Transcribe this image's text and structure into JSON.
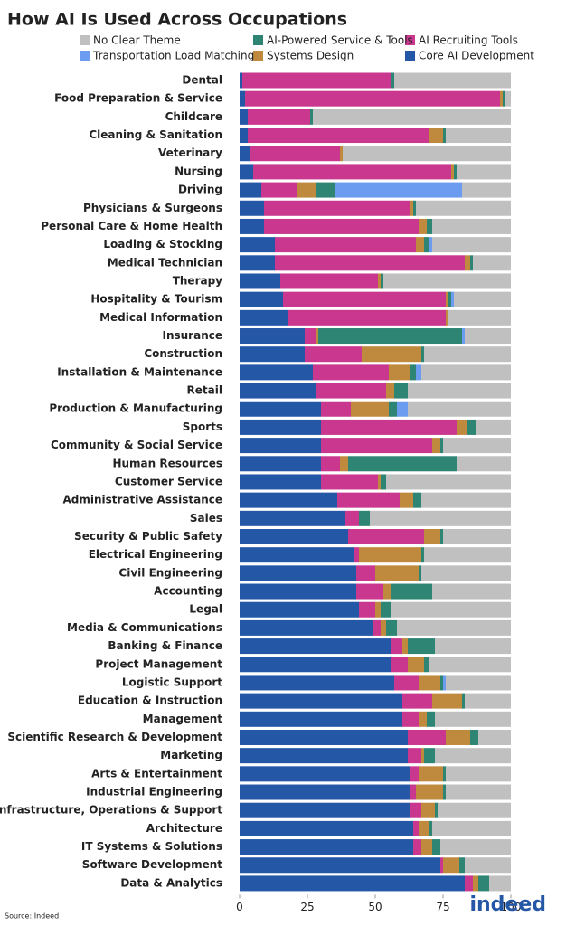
{
  "chart_data": {
    "type": "stacked-bar-horizontal",
    "title": "How AI Is Used Across Occupations",
    "categories": [
      "Dental",
      "Food Preparation & Service",
      "Childcare",
      "Cleaning & Sanitation",
      "Veterinary",
      "Nursing",
      "Driving",
      "Physicians & Surgeons",
      "Personal Care & Home Health",
      "Loading & Stocking",
      "Medical Technician",
      "Therapy",
      "Hospitality & Tourism",
      "Medical Information",
      "Insurance",
      "Construction",
      "Installation & Maintenance",
      "Retail",
      "Production & Manufacturing",
      "Sports",
      "Community & Social Service",
      "Human Resources",
      "Customer Service",
      "Administrative Assistance",
      "Sales",
      "Security & Public Safety",
      "Electrical Engineering",
      "Civil Engineering",
      "Accounting",
      "Legal",
      "Media & Communications",
      "Banking & Finance",
      "Project Management",
      "Logistic Support",
      "Education & Instruction",
      "Management",
      "Scientific Research & Development",
      "Marketing",
      "Arts & Entertainment",
      "Industrial Engineering",
      "IT Infrastructure, Operations & Support",
      "Architecture",
      "IT Systems & Solutions",
      "Software Development",
      "Data & Analytics"
    ],
    "series": [
      {
        "name": "Core AI Development",
        "color": "#2557a7",
        "values": [
          1,
          2,
          3,
          3,
          4,
          5,
          8,
          9,
          9,
          13,
          13,
          15,
          16,
          18,
          24,
          24,
          27,
          28,
          30,
          30,
          30,
          30,
          30,
          36,
          39,
          40,
          42,
          43,
          43,
          44,
          49,
          56,
          56,
          57,
          60,
          60,
          62,
          62,
          63,
          63,
          63,
          64,
          64,
          74,
          83
        ]
      },
      {
        "name": "AI Recruiting Tools",
        "color": "#c9378f",
        "values": [
          55,
          94,
          23,
          67,
          33,
          73,
          13,
          54,
          57,
          52,
          70,
          36,
          60,
          58,
          4,
          21,
          28,
          26,
          11,
          50,
          41,
          7,
          21,
          23,
          5,
          28,
          2,
          7,
          10,
          6,
          3,
          4,
          6,
          9,
          11,
          6,
          14,
          5,
          3,
          2,
          4,
          2,
          3,
          1,
          3
        ]
      },
      {
        "name": "Systems Design",
        "color": "#c08a3e",
        "values": [
          0,
          1,
          0,
          5,
          1,
          1,
          7,
          1,
          3,
          3,
          2,
          1,
          1,
          1,
          1,
          22,
          8,
          3,
          14,
          4,
          3,
          3,
          1,
          5,
          0,
          6,
          23,
          16,
          3,
          2,
          2,
          2,
          6,
          8,
          11,
          3,
          9,
          1,
          9,
          10,
          5,
          4,
          4,
          6,
          2
        ]
      },
      {
        "name": "AI-Powered Service & Tools",
        "color": "#2e8574",
        "values": [
          1,
          1,
          1,
          1,
          0,
          1,
          7,
          1,
          2,
          2,
          1,
          1,
          1,
          0,
          53,
          1,
          2,
          5,
          3,
          3,
          1,
          40,
          2,
          3,
          4,
          1,
          1,
          1,
          15,
          4,
          4,
          10,
          2,
          1,
          1,
          3,
          3,
          4,
          1,
          1,
          1,
          1,
          3,
          2,
          4
        ]
      },
      {
        "name": "Transportation Load Matching",
        "color": "#6b9cf0",
        "values": [
          0,
          0,
          0,
          0,
          0,
          0,
          47,
          0,
          0,
          1,
          0,
          0,
          1,
          0,
          1,
          0,
          2,
          0,
          4,
          0,
          0,
          0,
          0,
          0,
          0,
          0,
          0,
          0,
          0,
          0,
          0,
          0,
          0,
          1,
          0,
          0,
          0,
          0,
          0,
          0,
          0,
          0,
          0,
          0,
          0
        ]
      },
      {
        "name": "No Clear Theme",
        "color": "#c0c0c0",
        "values": [
          43,
          2,
          73,
          24,
          62,
          20,
          18,
          35,
          29,
          29,
          14,
          47,
          21,
          23,
          17,
          32,
          33,
          38,
          38,
          13,
          25,
          20,
          46,
          33,
          52,
          25,
          32,
          33,
          29,
          44,
          42,
          28,
          30,
          24,
          17,
          28,
          12,
          28,
          24,
          24,
          27,
          29,
          26,
          17,
          8
        ]
      }
    ],
    "xlim": [
      0,
      100
    ],
    "xticks": [
      0,
      25,
      50,
      75,
      100
    ],
    "grid": false,
    "source": "Source: Indeed",
    "logo": "indeed"
  }
}
